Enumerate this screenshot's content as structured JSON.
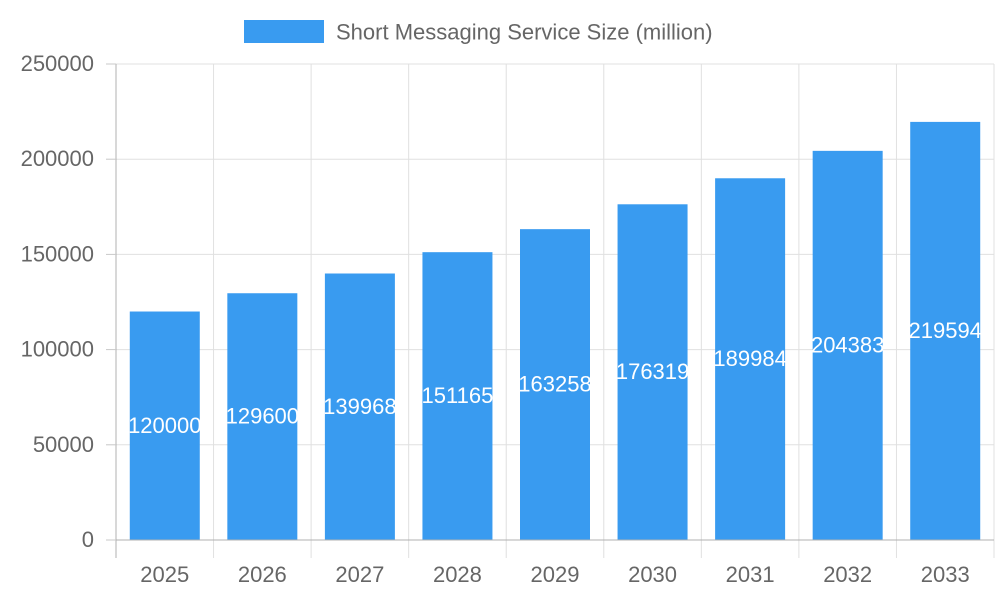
{
  "chart_data": {
    "type": "bar",
    "categories": [
      "2025",
      "2026",
      "2027",
      "2028",
      "2029",
      "2030",
      "2031",
      "2032",
      "2033"
    ],
    "series": [
      {
        "name": "Short Messaging Service Size (million)",
        "values": [
          120000,
          129600,
          139968,
          151165,
          163258,
          176319,
          189984,
          204383,
          219594
        ],
        "color": "#399bf0"
      }
    ],
    "ylim": [
      0,
      250000
    ],
    "yticks": [
      0,
      50000,
      100000,
      150000,
      200000,
      250000
    ],
    "grid": true,
    "legend": "top",
    "data_labels": true
  }
}
